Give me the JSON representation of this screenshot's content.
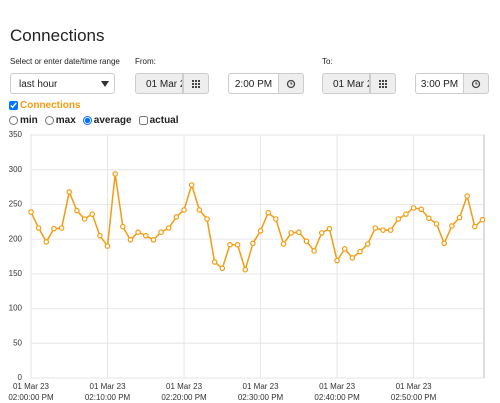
{
  "header": {
    "title": "Connections"
  },
  "controls": {
    "range_label": "Select or enter date/time range",
    "range_value": "last hour",
    "from_label": "From:",
    "from_date": "01 Mar 2",
    "from_time": "2:00 PM",
    "to_label": "To:",
    "to_date": "01 Mar 2",
    "to_time": "3:00 PM",
    "options": [
      "min",
      "max",
      "average",
      "actual"
    ],
    "selected_option": 2
  },
  "chart_data": {
    "type": "line",
    "x": [
      0,
      1,
      2,
      3,
      4,
      5,
      6,
      7,
      8,
      9,
      10,
      11,
      12,
      13,
      14,
      15,
      16,
      17,
      18,
      19,
      20,
      21,
      22,
      23,
      24,
      25,
      26,
      27,
      28,
      29,
      30,
      31,
      32,
      33,
      34,
      35,
      36,
      37,
      38,
      39,
      40,
      41,
      42,
      43,
      44,
      45,
      46,
      47,
      48,
      49,
      50,
      51,
      52,
      53,
      54,
      55,
      56,
      57,
      58,
      59
    ],
    "series": [
      {
        "name": "Connections",
        "color": "#f39c12",
        "values": [
          239,
          216,
          196,
          215,
          216,
          268,
          241,
          229,
          236,
          205,
          190,
          294,
          218,
          199,
          210,
          205,
          199,
          210,
          216,
          232,
          242,
          278,
          242,
          229,
          167,
          158,
          192,
          192,
          156,
          194,
          212,
          238,
          229,
          193,
          209,
          210,
          197,
          183,
          209,
          215,
          169,
          186,
          173,
          182,
          193,
          216,
          213,
          213,
          229,
          236,
          245,
          243,
          230,
          222,
          194,
          219,
          231,
          262,
          218,
          228
        ]
      }
    ],
    "xlim": [
      0,
      59.2
    ],
    "ylim": [
      0,
      350
    ],
    "yticks": [
      0,
      50,
      100,
      150,
      200,
      250,
      300,
      350
    ],
    "xticks": [
      {
        "value": 0,
        "label": "01 Mar 23\n02:00:00 PM"
      },
      {
        "value": 10,
        "label": "01 Mar 23\n02:10:00 PM"
      },
      {
        "value": 20,
        "label": "01 Mar 23\n02:20:00 PM"
      },
      {
        "value": 30,
        "label": "01 Mar 23\n02:30:00 PM"
      },
      {
        "value": 40,
        "label": "01 Mar 23\n02:40:00 PM"
      },
      {
        "value": 50,
        "label": "01 Mar 23\n02:50:00 PM"
      }
    ],
    "grid": true
  }
}
